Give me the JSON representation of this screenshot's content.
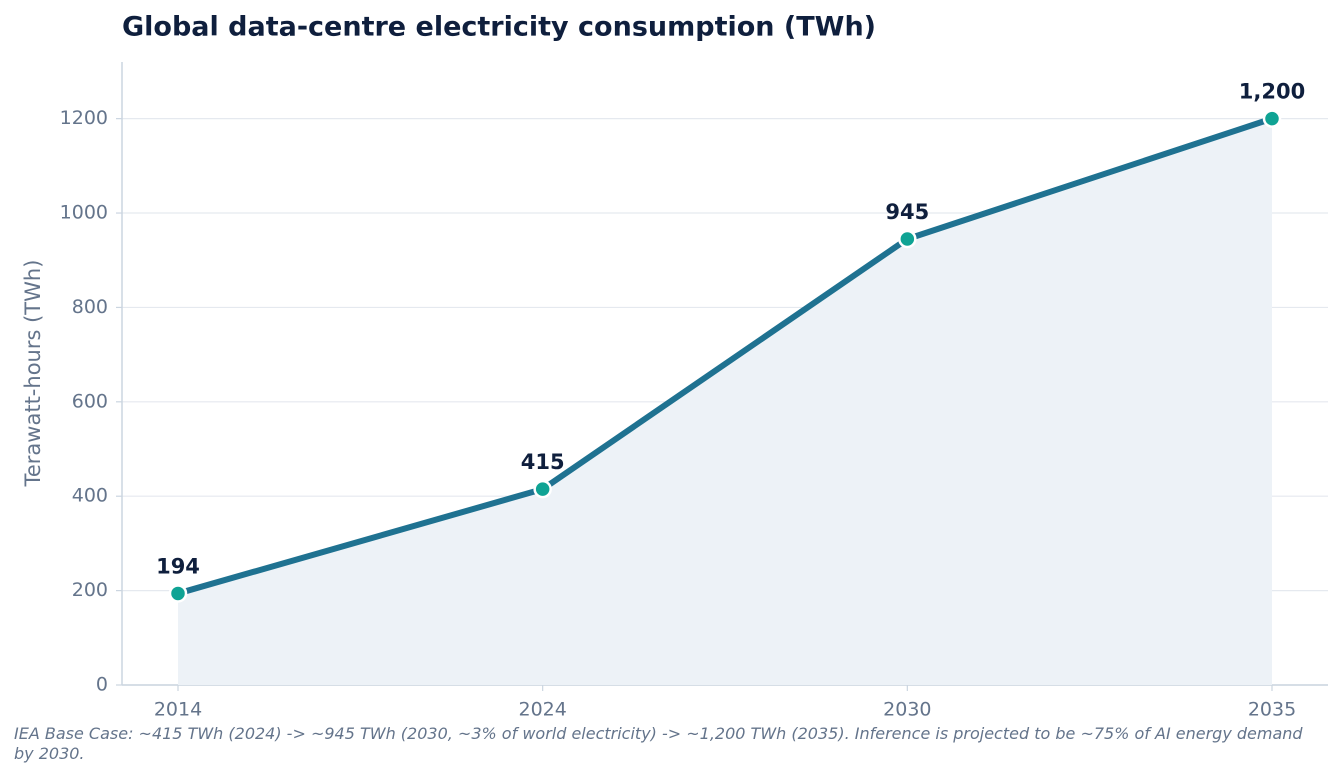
{
  "chart_data": {
    "type": "line",
    "title": "Global data-centre electricity consumption (TWh)",
    "y_label": "Terawatt-hours (TWh)",
    "categories": [
      "2014",
      "2024",
      "2030",
      "2035"
    ],
    "series": [
      {
        "name": "Global data-centre electricity consumption",
        "color": "#1f7291",
        "marker_color": "#0fa394",
        "fill_color": "#edf2f7",
        "values": [
          194,
          415,
          945,
          1200
        ],
        "value_labels": [
          "194",
          "415",
          "945",
          "1,200"
        ]
      }
    ],
    "ylim": [
      0,
      1320
    ],
    "yticks": [
      0,
      200,
      400,
      600,
      800,
      1000,
      1200
    ],
    "grid": true,
    "annotation": "IEA Base Case: ~415 TWh (2024) -> ~945 TWh (2030, ~3% of world electricity) -> ~1,200 TWh (2035). Inference is projected to be ~75% of AI energy demand by 2030."
  }
}
